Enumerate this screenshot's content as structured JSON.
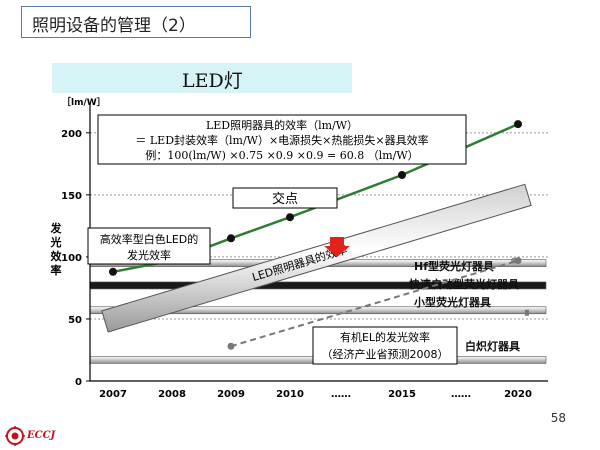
{
  "slide": {
    "title": "照明设备的管理（2）",
    "subtitle": "LED灯",
    "page_number": "58",
    "logo_text": "ECCJ"
  },
  "chart_data": {
    "type": "line",
    "ylabel": "发光效率",
    "yunit": "［lm/W］",
    "ylim": [
      0,
      220
    ],
    "yticks": [
      0,
      50,
      100,
      150,
      200
    ],
    "x_categories": [
      "2007",
      "2008",
      "2009",
      "2010",
      "……",
      "2015",
      "……",
      "2020"
    ],
    "series": [
      {
        "name": "高效率型白色LED的发光效率",
        "color": "#2e7d32",
        "points": [
          {
            "x": "2007",
            "y": 88
          },
          {
            "x": "2008",
            "y": 97
          },
          {
            "x": "2009",
            "y": 115
          },
          {
            "x": "2010",
            "y": 132
          },
          {
            "x": "2015",
            "y": 166
          },
          {
            "x": "2020",
            "y": 207
          }
        ]
      },
      {
        "name": "有机EL的发光效率（经济产业省预测2008）",
        "color": "#777777",
        "dashed": true,
        "points": [
          {
            "x": "2009",
            "y": 28
          },
          {
            "x": "2020",
            "y": 97
          }
        ]
      }
    ],
    "bands": [
      {
        "label": "Hf型荧光灯器具",
        "y": 95,
        "color": "#bdbdbd"
      },
      {
        "label": "快速启动型荧光灯器具",
        "y": 77,
        "color": "#222222"
      },
      {
        "label": "小型荧光灯器具",
        "y": 57,
        "color": "#9e9e9e"
      },
      {
        "label": "白炽灯器具",
        "y": 17,
        "color": "#8a8a8a"
      }
    ],
    "led_fixture_band": {
      "label": "LED照明器具的效率",
      "from": {
        "x": "2007",
        "y": 48
      },
      "to": {
        "x": "2020",
        "y": 150
      }
    },
    "annotations": {
      "formula_title": "LED照明器具的效率（lm/W）",
      "formula_line": "＝ LED封装效率（lm/W）×电源损失×热能损失×器具效率",
      "formula_example": "例：100(lm/W) ×0.75 ×0.9 ×0.9 = 60.8 （lm/W）",
      "intersection": "交点",
      "white_led_line1": "高效率型白色LED的",
      "white_led_line2": "发光效率",
      "oled_line1": "有机EL的发光效率",
      "oled_line2": "（经济产业省预测2008）"
    }
  }
}
